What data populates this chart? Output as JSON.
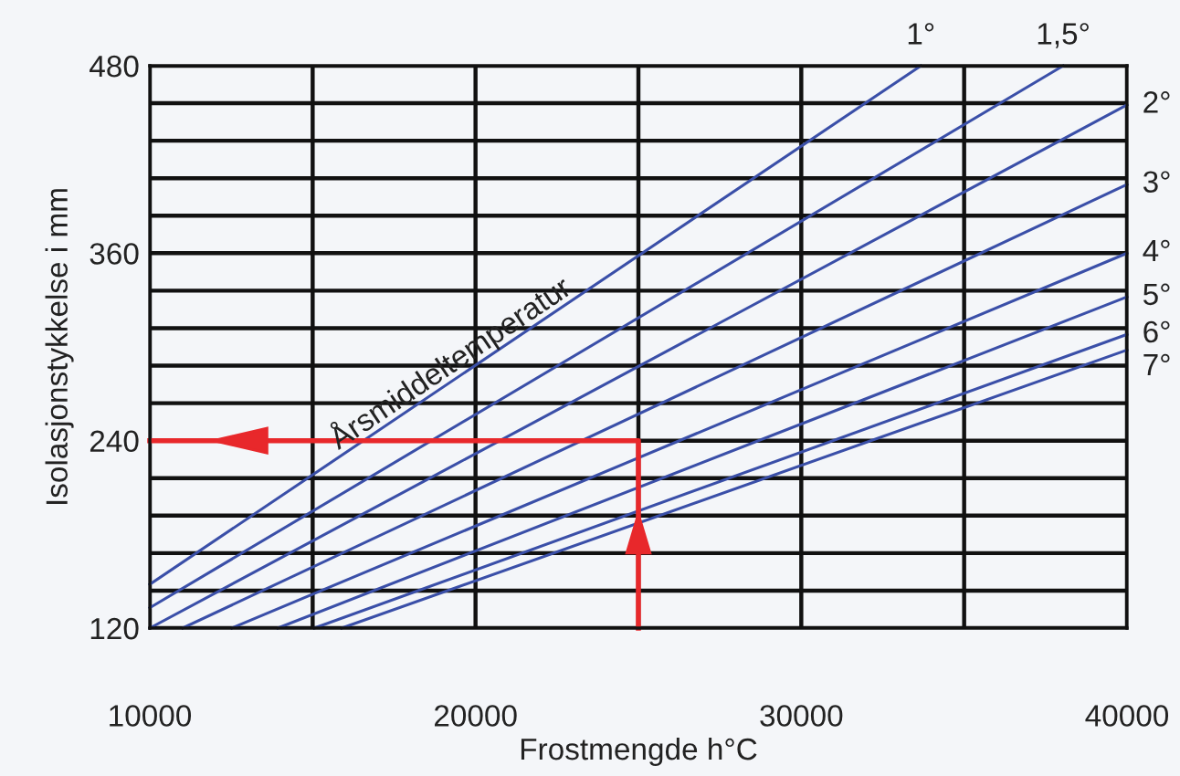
{
  "chart_data": {
    "type": "line",
    "xlabel": "Frostmengde h°C",
    "ylabel": "Isolasjonstykkelse i mm",
    "xlim": [
      10000,
      40000
    ],
    "ylim": [
      120,
      480
    ],
    "xticks": [
      10000,
      {
        "value": 15000,
        "label": null
      },
      20000,
      {
        "value": 25000,
        "label": null
      },
      30000,
      {
        "value": 35000,
        "label": null
      },
      40000
    ],
    "yticks": [
      120,
      {
        "value": 144,
        "label": null
      },
      {
        "value": 168,
        "label": null
      },
      {
        "value": 192,
        "label": null
      },
      {
        "value": 216,
        "label": null
      },
      240,
      {
        "value": 264,
        "label": null
      },
      {
        "value": 288,
        "label": null
      },
      {
        "value": 312,
        "label": null
      },
      {
        "value": 336,
        "label": null
      },
      360,
      {
        "value": 384,
        "label": null
      },
      {
        "value": 408,
        "label": null
      },
      {
        "value": 432,
        "label": null
      },
      {
        "value": 456,
        "label": null
      },
      480
    ],
    "grid": true,
    "legend": false,
    "marker": "none",
    "line_style": "solid",
    "series": [
      {
        "name": "1°",
        "color": "#3a4fa8",
        "x": [
          10000,
          33670
        ],
        "values": [
          148,
          480
        ]
      },
      {
        "name": "1,5°",
        "color": "#3a4fa8",
        "x": [
          10000,
          38040
        ],
        "values": [
          133,
          480
        ]
      },
      {
        "name": "2°",
        "color": "#3a4fa8",
        "x": [
          10000,
          40000
        ],
        "values": [
          120,
          455
        ]
      },
      {
        "name": "3°",
        "color": "#3a4fa8",
        "x": [
          11010,
          40000
        ],
        "values": [
          120,
          404
        ]
      },
      {
        "name": "4°",
        "color": "#3a4fa8",
        "x": [
          12520,
          40000
        ],
        "values": [
          120,
          360
        ]
      },
      {
        "name": "5°",
        "color": "#3a4fa8",
        "x": [
          13930,
          40000
        ],
        "values": [
          120,
          332
        ]
      },
      {
        "name": "6°",
        "color": "#3a4fa8",
        "x": [
          15050,
          40000
        ],
        "values": [
          120,
          308
        ]
      },
      {
        "name": "7°",
        "color": "#3a4fa8",
        "x": [
          15890,
          40000
        ],
        "values": [
          120,
          298
        ]
      },
      {
        "color": "#e8282b",
        "x": [
          25000,
          25000,
          10000
        ],
        "values": [
          120,
          240,
          240
        ]
      }
    ],
    "annotations": [
      {
        "text": "Årsmiddeltemperatur",
        "x": 19500,
        "y": 281
      }
    ]
  }
}
